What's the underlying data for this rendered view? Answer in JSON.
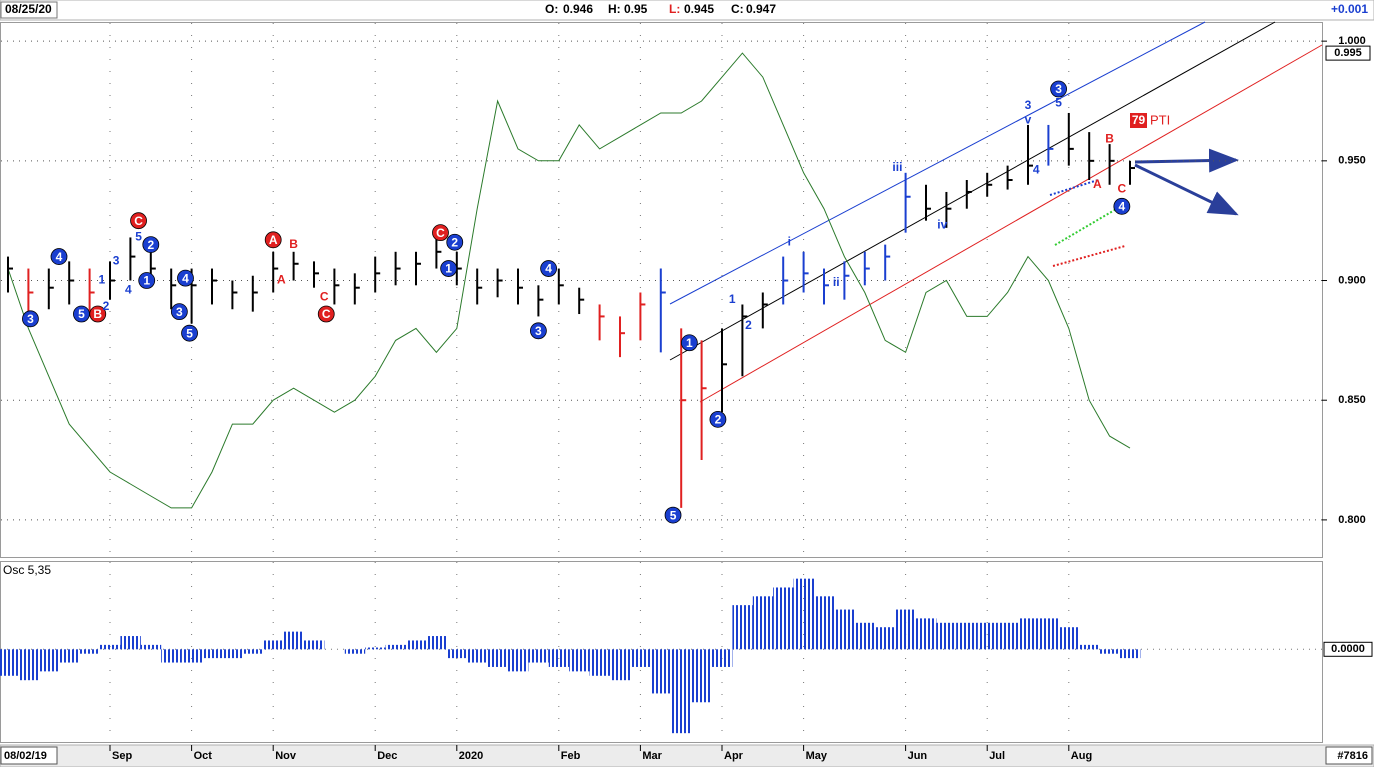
{
  "chart_data": {
    "type": "ohlc",
    "header": {
      "date": "08/25/20",
      "open_label": "O:",
      "open": 0.946,
      "high_label": "H:",
      "high": 0.95,
      "low_label": "L:",
      "low": 0.945,
      "close_label": "C:",
      "close": 0.947,
      "change": "+0.001"
    },
    "start_date": "08/02/19",
    "bar_count": "#7816",
    "categories": [
      null,
      null,
      null,
      null,
      null,
      "Sep",
      null,
      null,
      null,
      "Oct",
      null,
      null,
      null,
      "Nov",
      null,
      null,
      null,
      null,
      "Dec",
      null,
      null,
      null,
      "2020",
      null,
      null,
      null,
      null,
      "Feb",
      null,
      null,
      null,
      "Mar",
      null,
      null,
      null,
      "Apr",
      null,
      null,
      null,
      "May",
      null,
      null,
      null,
      null,
      "Jun",
      null,
      null,
      null,
      "Jul",
      null,
      null,
      null,
      "Aug",
      null,
      null,
      null
    ],
    "high": [
      0.91,
      0.905,
      0.905,
      0.908,
      0.905,
      0.908,
      0.918,
      0.912,
      0.905,
      0.905,
      0.905,
      0.9,
      0.902,
      0.912,
      0.912,
      0.908,
      0.905,
      0.903,
      0.91,
      0.912,
      0.912,
      0.918,
      0.912,
      0.905,
      0.905,
      0.905,
      0.898,
      0.905,
      0.897,
      0.89,
      0.885,
      0.895,
      0.905,
      0.88,
      0.875,
      0.88,
      0.89,
      0.895,
      0.91,
      0.912,
      0.905,
      0.908,
      0.912,
      0.915,
      0.945,
      0.94,
      0.937,
      0.942,
      0.945,
      0.948,
      0.965,
      0.965,
      0.97,
      0.962,
      0.957,
      0.95
    ],
    "low": [
      0.895,
      0.885,
      0.888,
      0.89,
      0.885,
      0.892,
      0.9,
      0.898,
      0.888,
      0.882,
      0.89,
      0.888,
      0.887,
      0.895,
      0.9,
      0.897,
      0.89,
      0.89,
      0.895,
      0.898,
      0.898,
      0.905,
      0.898,
      0.89,
      0.893,
      0.89,
      0.885,
      0.89,
      0.886,
      0.875,
      0.868,
      0.875,
      0.87,
      0.805,
      0.825,
      0.845,
      0.86,
      0.88,
      0.89,
      0.895,
      0.89,
      0.892,
      0.898,
      0.9,
      0.92,
      0.925,
      0.922,
      0.93,
      0.935,
      0.938,
      0.94,
      0.948,
      0.948,
      0.942,
      0.94,
      0.94
    ],
    "close": [
      0.905,
      0.895,
      0.897,
      0.9,
      0.895,
      0.9,
      0.91,
      0.905,
      0.898,
      0.898,
      0.9,
      0.895,
      0.895,
      0.905,
      0.907,
      0.903,
      0.898,
      0.897,
      0.903,
      0.905,
      0.907,
      0.912,
      0.905,
      0.897,
      0.9,
      0.897,
      0.892,
      0.898,
      0.892,
      0.885,
      0.878,
      0.89,
      0.895,
      0.85,
      0.855,
      0.865,
      0.885,
      0.89,
      0.9,
      0.903,
      0.898,
      0.902,
      0.905,
      0.91,
      0.935,
      0.93,
      0.93,
      0.937,
      0.94,
      0.942,
      0.948,
      0.955,
      0.955,
      0.95,
      0.95,
      0.947
    ],
    "colors": [
      "#000000",
      "#e02020",
      "#000000",
      "#000000",
      "#e02020",
      "#000000",
      "#000000",
      "#000000",
      "#000000",
      "#000000",
      "#000000",
      "#000000",
      "#000000",
      "#000000",
      "#000000",
      "#000000",
      "#000000",
      "#000000",
      "#000000",
      "#000000",
      "#000000",
      "#000000",
      "#000000",
      "#000000",
      "#000000",
      "#000000",
      "#000000",
      "#000000",
      "#000000",
      "#e02020",
      "#e02020",
      "#e02020",
      "#1a3fd0",
      "#e02020",
      "#e02020",
      "#000000",
      "#000000",
      "#000000",
      "#1a3fd0",
      "#1a3fd0",
      "#1a3fd0",
      "#1a3fd0",
      "#1a3fd0",
      "#1a3fd0",
      "#1a3fd0",
      "#000000",
      "#000000",
      "#000000",
      "#000000",
      "#000000",
      "#000000",
      "#1a3fd0",
      "#000000",
      "#000000",
      "#000000",
      "#000000"
    ],
    "line": {
      "color": "#2b7a2b",
      "values": [
        0.905,
        0.88,
        0.86,
        0.84,
        0.83,
        0.82,
        0.815,
        0.81,
        0.805,
        0.805,
        0.82,
        0.84,
        0.84,
        0.85,
        0.855,
        0.85,
        0.845,
        0.85,
        0.86,
        0.875,
        0.88,
        0.87,
        0.88,
        0.93,
        0.975,
        0.955,
        0.95,
        0.95,
        0.965,
        0.955,
        0.96,
        0.965,
        0.97,
        0.97,
        0.975,
        0.985,
        0.995,
        0.985,
        0.965,
        0.945,
        0.93,
        0.91,
        0.895,
        0.875,
        0.87,
        0.895,
        0.9,
        0.885,
        0.885,
        0.895,
        0.91,
        0.9,
        0.88,
        0.85,
        0.835,
        0.83
      ]
    },
    "ylim": [
      0.7845,
      1.008
    ],
    "yticks": [
      {
        "value": 1.0,
        "label": "1.000"
      },
      {
        "value": 0.95,
        "label": "0.950"
      },
      {
        "value": 0.9,
        "label": "0.900"
      },
      {
        "value": 0.85,
        "label": "0.850"
      },
      {
        "value": 0.8,
        "label": "0.800"
      }
    ],
    "last_price": 0.995,
    "grid": true,
    "pti": {
      "value": 79,
      "label": "PTI"
    },
    "annotations": [
      {
        "text": "3",
        "week": 1.1,
        "price": 0.884,
        "kind": "blue-circle"
      },
      {
        "text": "4",
        "week": 2.5,
        "price": 0.91,
        "kind": "blue-circle"
      },
      {
        "text": "5",
        "week": 3.6,
        "price": 0.886,
        "kind": "blue-circle"
      },
      {
        "text": "B",
        "week": 4.4,
        "price": 0.886,
        "kind": "red-circle"
      },
      {
        "text": "1",
        "week": 4.6,
        "price": 0.9,
        "kind": "blue"
      },
      {
        "text": "2",
        "week": 4.8,
        "price": 0.889,
        "kind": "blue"
      },
      {
        "text": "3",
        "week": 5.3,
        "price": 0.908,
        "kind": "blue"
      },
      {
        "text": "4",
        "week": 5.9,
        "price": 0.896,
        "kind": "blue"
      },
      {
        "text": "5",
        "week": 6.4,
        "price": 0.918,
        "kind": "blue"
      },
      {
        "text": "C",
        "week": 6.4,
        "price": 0.925,
        "kind": "red-circle"
      },
      {
        "text": "1",
        "week": 6.8,
        "price": 0.9,
        "kind": "blue-circle"
      },
      {
        "text": "2",
        "week": 7.0,
        "price": 0.915,
        "kind": "blue-circle"
      },
      {
        "text": "3",
        "week": 8.4,
        "price": 0.887,
        "kind": "blue-circle"
      },
      {
        "text": "4",
        "week": 8.7,
        "price": 0.901,
        "kind": "blue-circle"
      },
      {
        "text": "5",
        "week": 8.9,
        "price": 0.878,
        "kind": "blue-circle"
      },
      {
        "text": "A",
        "week": 13.0,
        "price": 0.917,
        "kind": "red-circle"
      },
      {
        "text": "A",
        "week": 13.4,
        "price": 0.9,
        "kind": "red"
      },
      {
        "text": "B",
        "week": 14.0,
        "price": 0.915,
        "kind": "red"
      },
      {
        "text": "C",
        "week": 15.5,
        "price": 0.893,
        "kind": "red"
      },
      {
        "text": "C",
        "week": 15.6,
        "price": 0.886,
        "kind": "red-circle"
      },
      {
        "text": "C",
        "week": 21.2,
        "price": 0.92,
        "kind": "red-circle"
      },
      {
        "text": "1",
        "week": 21.6,
        "price": 0.905,
        "kind": "blue-circle"
      },
      {
        "text": "2",
        "week": 21.9,
        "price": 0.916,
        "kind": "blue-circle"
      },
      {
        "text": "3",
        "week": 26.0,
        "price": 0.879,
        "kind": "blue-circle"
      },
      {
        "text": "4",
        "week": 26.5,
        "price": 0.905,
        "kind": "blue-circle"
      },
      {
        "text": "5",
        "week": 32.6,
        "price": 0.802,
        "kind": "blue-circle"
      },
      {
        "text": "1",
        "week": 33.4,
        "price": 0.874,
        "kind": "blue-circle"
      },
      {
        "text": "2",
        "week": 34.8,
        "price": 0.842,
        "kind": "blue-circle"
      },
      {
        "text": "1",
        "week": 35.5,
        "price": 0.892,
        "kind": "blue"
      },
      {
        "text": "2",
        "week": 36.3,
        "price": 0.881,
        "kind": "blue"
      },
      {
        "text": "i",
        "week": 38.3,
        "price": 0.916,
        "kind": "blue"
      },
      {
        "text": "ii",
        "week": 40.6,
        "price": 0.899,
        "kind": "blue"
      },
      {
        "text": "iii",
        "week": 43.6,
        "price": 0.947,
        "kind": "blue"
      },
      {
        "text": "iv",
        "week": 45.8,
        "price": 0.923,
        "kind": "blue"
      },
      {
        "text": "3",
        "week": 50.0,
        "price": 0.973,
        "kind": "blue"
      },
      {
        "text": "v",
        "week": 50.0,
        "price": 0.967,
        "kind": "blue"
      },
      {
        "text": "4",
        "week": 50.4,
        "price": 0.946,
        "kind": "blue"
      },
      {
        "text": "5",
        "week": 51.5,
        "price": 0.974,
        "kind": "blue"
      },
      {
        "text": "3",
        "week": 51.5,
        "price": 0.98,
        "kind": "blue-circle"
      },
      {
        "text": "A",
        "week": 53.4,
        "price": 0.94,
        "kind": "red"
      },
      {
        "text": "B",
        "week": 54.0,
        "price": 0.959,
        "kind": "red"
      },
      {
        "text": "C",
        "week": 54.6,
        "price": 0.938,
        "kind": "red"
      },
      {
        "text": "4",
        "week": 54.6,
        "price": 0.931,
        "kind": "blue-circle"
      }
    ],
    "oscillator": {
      "title": "Osc 5,35",
      "color": "#1a3fd0",
      "values": [
        -0.3,
        -0.35,
        -0.25,
        -0.15,
        -0.05,
        0.05,
        0.15,
        0.05,
        -0.15,
        -0.15,
        -0.1,
        -0.1,
        -0.05,
        0.1,
        0.2,
        0.1,
        0.0,
        -0.05,
        0.02,
        0.05,
        0.1,
        0.15,
        -0.1,
        -0.15,
        -0.2,
        -0.25,
        -0.15,
        -0.2,
        -0.25,
        -0.3,
        -0.35,
        -0.2,
        -0.5,
        -0.95,
        -0.6,
        -0.2,
        0.5,
        0.6,
        0.7,
        0.8,
        0.6,
        0.45,
        0.3,
        0.25,
        0.45,
        0.35,
        0.3,
        0.3,
        0.3,
        0.3,
        0.35,
        0.35,
        0.25,
        0.05,
        -0.05,
        -0.1
      ],
      "ylim": [
        -1.05,
        1.0
      ],
      "yticks": [
        {
          "value": 0,
          "label": "0.0000"
        }
      ]
    }
  }
}
